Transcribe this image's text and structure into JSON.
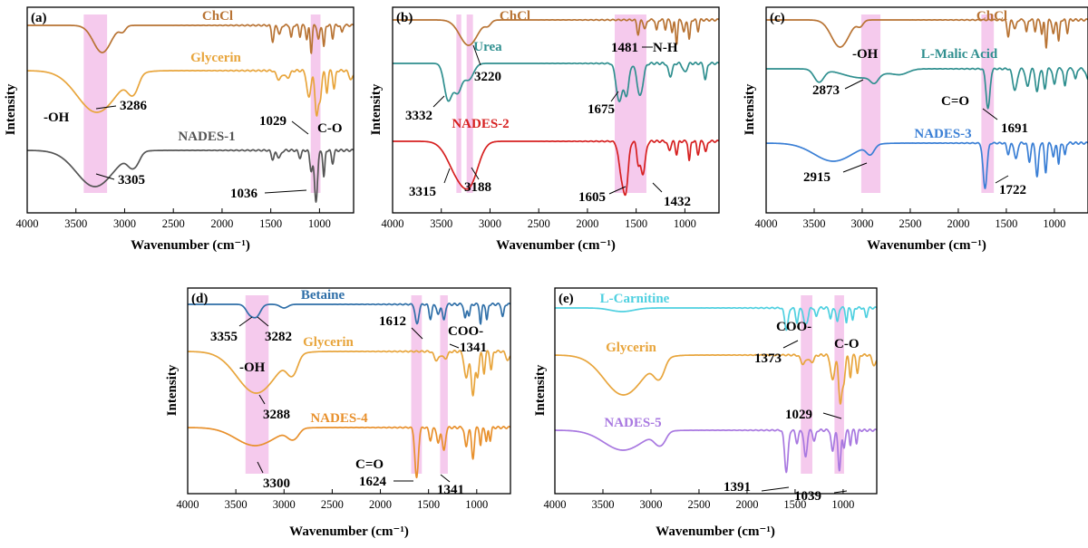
{
  "colors": {
    "ChCl": "#b87333",
    "Glycerin": "#e8a53c",
    "NADES-1": "#555555",
    "Urea": "#2f8f8f",
    "NADES-2": "#d62020",
    "L-Malic Acid": "#2f8f8f",
    "NADES-3": "#3a7fd5",
    "Betaine": "#2f6fa8",
    "NADES-4": "#e8902c",
    "L-Carnitine": "#4fd0e0",
    "Glycerin-e": "#e8a53c",
    "NADES-5": "#a878e0",
    "band": "#f2bde8"
  },
  "chart_data": [
    {
      "type": "line",
      "id": "a",
      "panel_label": "(a)",
      "xlabel": "Wavenumber (cm⁻¹)",
      "ylabel": "Intensity",
      "xlim": [
        4000,
        650
      ],
      "xticks": [
        4000,
        3500,
        3000,
        2500,
        2000,
        1500,
        1000
      ],
      "series": [
        {
          "name": "ChCl",
          "color_key": "ChCl",
          "offset": 0.0
        },
        {
          "name": "Glycerin",
          "color_key": "Glycerin",
          "offset": 1.0
        },
        {
          "name": "NADES-1",
          "color_key": "NADES-1",
          "offset": 2.0
        }
      ],
      "bands": [
        [
          3420,
          3180
        ],
        [
          1090,
          990
        ]
      ],
      "annotations": [
        "-OH",
        "3286",
        "3305",
        "1029",
        "C-O",
        "1036"
      ]
    },
    {
      "type": "line",
      "id": "b",
      "panel_label": "(b)",
      "xlabel": "Wavenumber (cm⁻¹)",
      "ylabel": "Intensity",
      "xlim": [
        4000,
        650
      ],
      "xticks": [
        4000,
        3500,
        3000,
        2500,
        2000,
        1500,
        1000
      ],
      "series": [
        {
          "name": "ChCl",
          "color_key": "ChCl",
          "offset": 0.0
        },
        {
          "name": "Urea",
          "color_key": "Urea",
          "offset": 1.0
        },
        {
          "name": "NADES-2",
          "color_key": "NADES-2",
          "offset": 2.0
        }
      ],
      "bands": [
        [
          3345,
          3295
        ],
        [
          3240,
          3175
        ],
        [
          1720,
          1395
        ]
      ],
      "annotations": [
        "1481",
        "N-H",
        "3220",
        "3332",
        "1675",
        "3315",
        "3188",
        "1605",
        "1432"
      ]
    },
    {
      "type": "line",
      "id": "c",
      "panel_label": "(c)",
      "xlabel": "Wavenumber (cm⁻¹)",
      "ylabel": "Intensity",
      "xlim": [
        4000,
        650
      ],
      "xticks": [
        4000,
        3500,
        3000,
        2500,
        2000,
        1500,
        1000
      ],
      "series": [
        {
          "name": "ChCl",
          "color_key": "ChCl",
          "offset": 0.0
        },
        {
          "name": "L-Malic Acid",
          "color_key": "L-Malic Acid",
          "offset": 1.0
        },
        {
          "name": "NADES-3",
          "color_key": "NADES-3",
          "offset": 2.0
        }
      ],
      "bands": [
        [
          3010,
          2810
        ],
        [
          1760,
          1630
        ]
      ],
      "annotations": [
        "-OH",
        "2873",
        "C=O",
        "1691",
        "2915",
        "1722"
      ]
    },
    {
      "type": "line",
      "id": "d",
      "panel_label": "(d)",
      "xlabel": "Wavenumber (cm⁻¹)",
      "ylabel": "Intensity",
      "xlim": [
        4000,
        650
      ],
      "xticks": [
        4000,
        3500,
        3000,
        2500,
        2000,
        1500,
        1000
      ],
      "series": [
        {
          "name": "Betaine",
          "color_key": "Betaine",
          "offset": 0.0
        },
        {
          "name": "Glycerin",
          "color_key": "Glycerin",
          "offset": 1.0
        },
        {
          "name": "NADES-4",
          "color_key": "NADES-4",
          "offset": 2.0
        }
      ],
      "bands": [
        [
          3400,
          3160
        ],
        [
          1680,
          1570
        ],
        [
          1380,
          1300
        ]
      ],
      "annotations": [
        "3355",
        "3282",
        "1612",
        "COO-",
        "1341",
        "-OH",
        "3288",
        "C=O",
        "3300",
        "1624",
        "1341"
      ]
    },
    {
      "type": "line",
      "id": "e",
      "panel_label": "(e)",
      "xlabel": "Wavenumber (cm⁻¹)",
      "ylabel": "Intensity",
      "xlim": [
        4000,
        650
      ],
      "xticks": [
        4000,
        3500,
        3000,
        2500,
        2000,
        1500,
        1000
      ],
      "series": [
        {
          "name": "L-Carnitine",
          "color_key": "L-Carnitine",
          "offset": 0.0
        },
        {
          "name": "Glycerin",
          "color_key": "Glycerin-e",
          "offset": 1.0
        },
        {
          "name": "NADES-5",
          "color_key": "NADES-5",
          "offset": 2.0
        }
      ],
      "bands": [
        [
          1440,
          1320
        ],
        [
          1090,
          990
        ]
      ],
      "annotations": [
        "COO-",
        "1373",
        "C-O",
        "1029",
        "1391",
        "1039"
      ]
    }
  ]
}
